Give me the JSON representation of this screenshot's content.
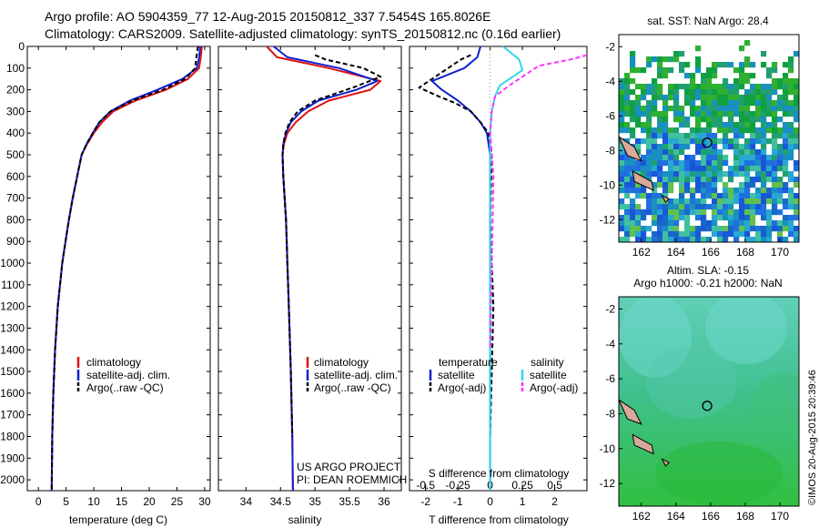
{
  "header": {
    "line1": "Argo profile: AO 5904359_77 12-Aug-2015 20150812_337 7.5454S 165.8026E",
    "line2": "Climatology: CARS2009. Satellite-adjusted climatology: synTS_20150812.nc (0.16d earlier)"
  },
  "credit": "©IMOS 20-Aug-2015 20:39:46",
  "colors": {
    "climatology": "#e01010",
    "satellite": "#1020d0",
    "argo": "#000000",
    "sal_satellite": "#30d8e8",
    "sal_argo": "#ff30ff",
    "map_land": "#d8a898",
    "map_marker": "#000000"
  },
  "chart_data": [
    {
      "id": "temperature",
      "type": "line",
      "xlabel": "temperature (deg C)",
      "ylabel": "",
      "xlim": [
        -2,
        31
      ],
      "ylim": [
        2050,
        0
      ],
      "x_ticks": [
        "0",
        "5",
        "10",
        "15",
        "20",
        "25",
        "30"
      ],
      "y_ticks": [
        "0",
        "100",
        "200",
        "300",
        "400",
        "500",
        "600",
        "700",
        "800",
        "900",
        "1000",
        "1100",
        "1200",
        "1300",
        "1400",
        "1500",
        "1600",
        "1700",
        "1800",
        "1900",
        "2000"
      ],
      "legend": [
        "climatology",
        "satellite-adj. clim.",
        "Argo(..raw -QC)"
      ],
      "legend_position": "lower-center",
      "series": [
        {
          "name": "climatology",
          "x": [
            29.5,
            29.3,
            29.0,
            27.0,
            23.0,
            17.5,
            13.5,
            11.5,
            10.0,
            8.8,
            7.8,
            7.0,
            6.2,
            5.5,
            4.9,
            4.3,
            3.5,
            3.0,
            2.7,
            2.5,
            2.4
          ],
          "y": [
            0,
            50,
            100,
            150,
            200,
            250,
            300,
            350,
            400,
            450,
            500,
            600,
            700,
            800,
            900,
            1000,
            1200,
            1400,
            1600,
            1800,
            2050
          ]
        },
        {
          "name": "satellite-adj. clim.",
          "x": [
            29.2,
            29.0,
            28.6,
            26.0,
            21.5,
            16.5,
            13.0,
            11.0,
            9.8,
            8.7,
            7.8,
            7.0,
            6.2,
            5.5,
            4.9,
            4.3,
            3.5,
            3.0,
            2.7,
            2.5,
            2.4
          ],
          "y": [
            0,
            50,
            100,
            150,
            200,
            250,
            300,
            350,
            400,
            450,
            500,
            600,
            700,
            800,
            900,
            1000,
            1200,
            1400,
            1600,
            1800,
            2050
          ]
        },
        {
          "name": "Argo(..raw -QC)",
          "x": [
            28.8,
            28.5,
            28.3,
            26.5,
            22.5,
            17.0,
            13.0,
            11.0,
            9.8,
            8.7,
            7.8,
            7.0,
            6.2,
            5.5,
            4.9,
            4.3,
            3.5,
            3.0,
            2.7,
            2.5,
            2.4
          ],
          "y": [
            0,
            50,
            100,
            150,
            200,
            250,
            300,
            350,
            400,
            450,
            500,
            600,
            700,
            800,
            900,
            1000,
            1200,
            1400,
            1600,
            1800,
            2050
          ]
        }
      ]
    },
    {
      "id": "salinity",
      "type": "line",
      "xlabel": "salinity",
      "ylabel": "",
      "xlim": [
        33.6,
        36.25
      ],
      "ylim": [
        2050,
        0
      ],
      "x_ticks": [
        "34",
        "34.5",
        "35",
        "35.5",
        "36"
      ],
      "legend": [
        "climatology",
        "satellite-adj. clim.",
        "Argo(..raw -QC)"
      ],
      "legend_position": "lower-center",
      "annotation": [
        "US ARGO PROJECT",
        "PI: DEAN ROEMMICH"
      ],
      "series": [
        {
          "name": "climatology",
          "x": [
            34.3,
            34.45,
            35.2,
            35.95,
            35.8,
            35.2,
            34.9,
            34.72,
            34.6,
            34.55,
            34.53,
            34.54,
            34.56,
            34.58,
            34.6,
            34.62,
            34.65,
            34.67,
            34.68
          ],
          "y": [
            0,
            50,
            100,
            160,
            200,
            250,
            300,
            350,
            400,
            450,
            500,
            600,
            700,
            800,
            1000,
            1200,
            1500,
            1800,
            2050
          ]
        },
        {
          "name": "satellite-adj. clim.",
          "x": [
            34.4,
            34.6,
            35.35,
            35.9,
            35.6,
            35.05,
            34.8,
            34.65,
            34.58,
            34.54,
            34.53,
            34.54,
            34.56,
            34.58,
            34.6,
            34.62,
            34.65,
            34.67,
            34.68
          ],
          "y": [
            0,
            50,
            100,
            160,
            200,
            250,
            300,
            350,
            400,
            450,
            500,
            600,
            700,
            800,
            1000,
            1200,
            1500,
            1800,
            2050
          ]
        },
        {
          "name": "Argo(..raw -QC)",
          "x": [
            35.0,
            35.15,
            35.7,
            35.95,
            35.55,
            35.0,
            34.75,
            34.63,
            34.57,
            34.54,
            34.53,
            34.54,
            34.56,
            34.58,
            34.6,
            34.62,
            34.65,
            34.67
          ],
          "y": [
            40,
            60,
            100,
            140,
            190,
            250,
            300,
            350,
            400,
            450,
            500,
            600,
            700,
            800,
            1000,
            1200,
            1500,
            1800
          ]
        }
      ]
    },
    {
      "id": "difference",
      "type": "line",
      "xlabel": "T difference from climatology",
      "xlabel2": "S difference from climatology",
      "xlim": [
        -2.5,
        3.0
      ],
      "ylim": [
        2050,
        0
      ],
      "x_ticks": [
        "-2",
        "-1",
        "0",
        "1",
        "2"
      ],
      "x_ticks_top": [
        "-0.5",
        "-0.25",
        "0",
        "0.25",
        "0.5"
      ],
      "legend_headers": [
        "temperature",
        "salinity"
      ],
      "legend": [
        "satellite",
        "Argo(-adj)",
        "satellite",
        "Argo(-adj)"
      ],
      "legend_position": "lower-center",
      "series": [
        {
          "name": "satellite",
          "x": [
            -0.3,
            -0.4,
            -0.8,
            -1.8,
            -1.5,
            -1.0,
            -0.6,
            -0.3,
            -0.1,
            0,
            0,
            0
          ],
          "y": [
            0,
            50,
            100,
            160,
            200,
            250,
            300,
            350,
            400,
            500,
            1000,
            2050
          ]
        },
        {
          "name": "Argo(-adj)",
          "x": [
            -0.6,
            -0.9,
            -1.3,
            -2.2,
            -1.6,
            -1.1,
            -0.6,
            -0.3,
            -0.05,
            0.05,
            0,
            0.1,
            0
          ],
          "y": [
            40,
            60,
            100,
            190,
            230,
            260,
            300,
            350,
            400,
            500,
            800,
            1200,
            1800
          ]
        },
        {
          "name": "satellite",
          "x": [
            0.4,
            0.9,
            1.0,
            0.7,
            0.3,
            0.15,
            0.05,
            0,
            0,
            0
          ],
          "y": [
            0,
            60,
            110,
            140,
            180,
            230,
            300,
            400,
            1000,
            2050
          ]
        },
        {
          "name": "Argo(-adj)",
          "x": [
            3.0,
            2.5,
            1.5,
            0.6,
            0.15,
            0.05,
            0,
            0.1,
            0.05,
            0
          ],
          "y": [
            40,
            60,
            90,
            180,
            230,
            300,
            400,
            600,
            1000,
            1400
          ]
        }
      ]
    },
    {
      "id": "sst_map",
      "type": "heatmap",
      "title": "sat. SST: NaN Argo: 28.4",
      "x_ticks": [
        "162",
        "164",
        "166",
        "168",
        "170"
      ],
      "y_ticks": [
        "-2",
        "-4",
        "-6",
        "-8",
        "-10",
        "-12"
      ],
      "xlim": [
        160.7,
        171.1
      ],
      "ylim": [
        -13.3,
        -1.3
      ],
      "marker": {
        "lon": 165.8,
        "lat": -7.55
      }
    },
    {
      "id": "sla_map",
      "type": "heatmap",
      "title": "Altim. SLA: -0.15",
      "subtitle": "Argo h1000: -0.21 h2000: NaN",
      "x_ticks": [
        "162",
        "164",
        "166",
        "168",
        "170"
      ],
      "y_ticks": [
        "-2",
        "-4",
        "-6",
        "-8",
        "-10",
        "-12"
      ],
      "xlim": [
        160.7,
        171.1
      ],
      "ylim": [
        -13.3,
        -1.3
      ],
      "marker": {
        "lon": 165.8,
        "lat": -7.55
      }
    }
  ]
}
